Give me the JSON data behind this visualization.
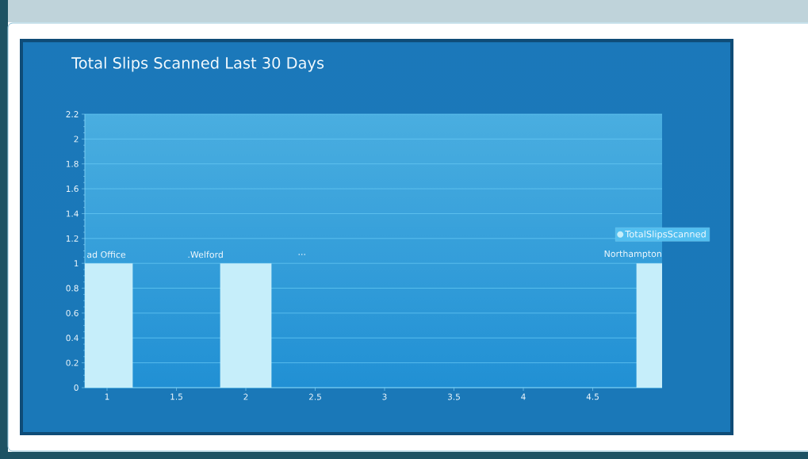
{
  "chart_data": {
    "type": "bar",
    "title": "Total Slips Scanned Last 30 Days",
    "x": [
      1,
      2,
      5
    ],
    "series": [
      {
        "name": "TotalSlipsScanned",
        "color": "#c6eefa",
        "values": [
          1,
          1,
          1
        ]
      }
    ],
    "xlim": [
      0.84,
      5
    ],
    "xticks": [
      1,
      1.5,
      2,
      2.5,
      3,
      3.5,
      4,
      4.5
    ],
    "ylim": [
      0,
      2.2
    ],
    "yticks": [
      0,
      0.2,
      0.4,
      0.6,
      0.8,
      1,
      1.2,
      1.4,
      1.6,
      1.8,
      2,
      2.2
    ],
    "grid": "y",
    "legend": "right",
    "annotations": [
      "ad Office",
      ".Welford",
      "...",
      "Northampton"
    ]
  }
}
